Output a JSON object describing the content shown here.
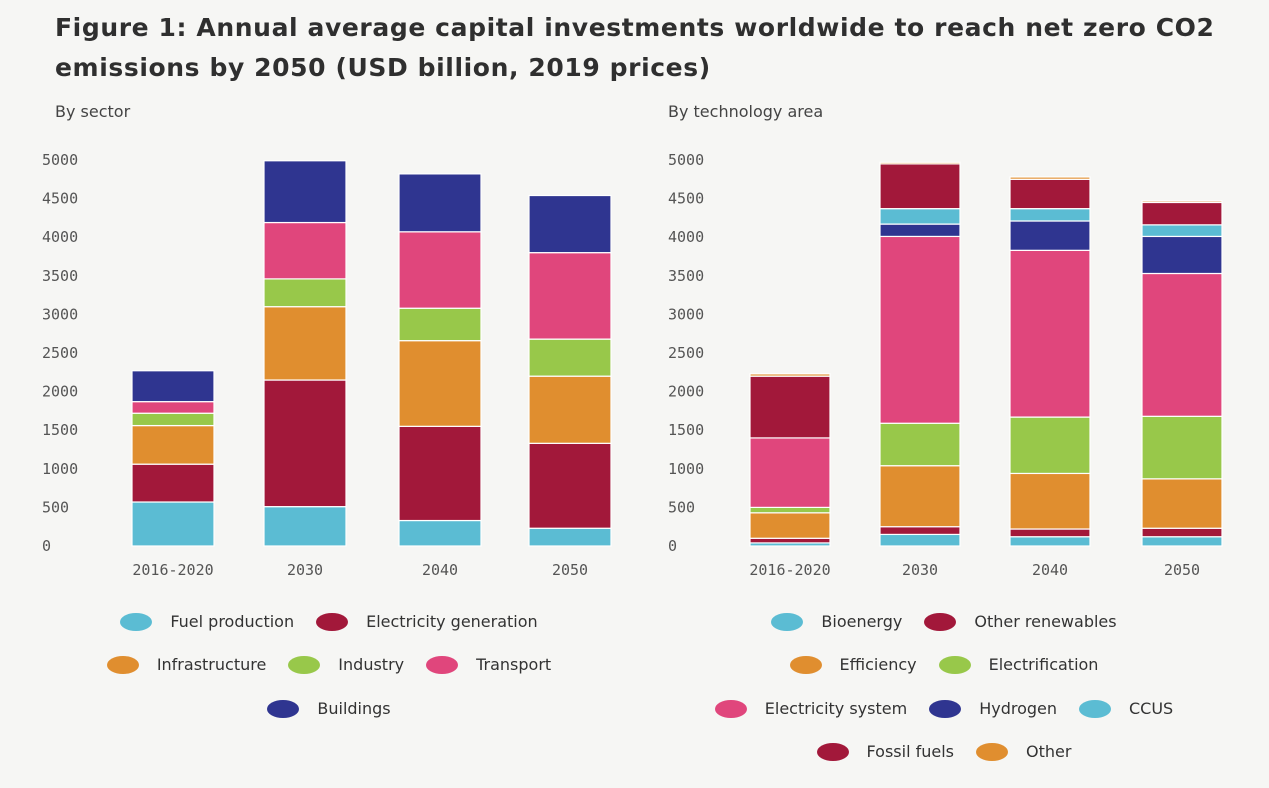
{
  "title": "Figure 1: Annual average capital investments worldwide to reach net zero CO2 emissions by 2050 (USD billion, 2019 prices)",
  "chart_data": [
    {
      "type": "bar",
      "stacked": true,
      "subtitle": "By sector",
      "categories": [
        "2016-2020",
        "2030",
        "2040",
        "2050"
      ],
      "ylim": [
        0,
        5000
      ],
      "yticks": [
        0,
        500,
        1000,
        1500,
        2000,
        2500,
        3000,
        3500,
        4000,
        4500,
        5000
      ],
      "series": [
        {
          "name": "Fuel production",
          "color": "#5bbcd3",
          "values": [
            570,
            510,
            330,
            230
          ]
        },
        {
          "name": "Electricity generation",
          "color": "#a2183a",
          "values": [
            490,
            1640,
            1220,
            1100
          ]
        },
        {
          "name": "Infrastructure",
          "color": "#e08e2f",
          "values": [
            500,
            950,
            1110,
            870
          ]
        },
        {
          "name": "Industry",
          "color": "#98c84a",
          "values": [
            160,
            360,
            420,
            480
          ]
        },
        {
          "name": "Transport",
          "color": "#e0467c",
          "values": [
            150,
            730,
            990,
            1120
          ]
        },
        {
          "name": "Buildings",
          "color": "#2f3590",
          "values": [
            400,
            800,
            750,
            740
          ]
        }
      ],
      "legend_rows": [
        [
          "Fuel production",
          "Electricity generation"
        ],
        [
          "Infrastructure",
          "Industry",
          "Transport"
        ],
        [
          "Buildings"
        ]
      ]
    },
    {
      "type": "bar",
      "stacked": true,
      "subtitle": "By technology area",
      "categories": [
        "2016-2020",
        "2030",
        "2040",
        "2050"
      ],
      "ylim": [
        0,
        5000
      ],
      "yticks": [
        0,
        500,
        1000,
        1500,
        2000,
        2500,
        3000,
        3500,
        4000,
        4500,
        5000
      ],
      "series": [
        {
          "name": "Bioenergy",
          "color": "#5bbcd3",
          "values": [
            40,
            150,
            120,
            120
          ]
        },
        {
          "name": "Other renewables",
          "color": "#a2183a",
          "values": [
            60,
            100,
            100,
            110
          ]
        },
        {
          "name": "Efficiency",
          "color": "#e08e2f",
          "values": [
            330,
            790,
            720,
            640
          ]
        },
        {
          "name": "Electrification",
          "color": "#98c84a",
          "values": [
            70,
            550,
            730,
            810
          ]
        },
        {
          "name": "Electricity system",
          "color": "#e0467c",
          "values": [
            900,
            2420,
            2160,
            1850
          ]
        },
        {
          "name": "Hydrogen",
          "color": "#2f3590",
          "values": [
            0,
            160,
            380,
            480
          ]
        },
        {
          "name": "CCUS",
          "color": "#5bbcd3",
          "values": [
            0,
            200,
            160,
            150
          ]
        },
        {
          "name": "Fossil fuels",
          "color": "#a2183a",
          "values": [
            800,
            580,
            380,
            290
          ]
        },
        {
          "name": "Other",
          "color": "#e08e2f",
          "values": [
            30,
            20,
            30,
            20
          ]
        }
      ],
      "legend_rows": [
        [
          "Bioenergy",
          "Other renewables"
        ],
        [
          "Efficiency",
          "Electrification"
        ],
        [
          "Electricity system",
          "Hydrogen",
          "CCUS"
        ],
        [
          "Fossil fuels",
          "Other"
        ]
      ]
    }
  ]
}
